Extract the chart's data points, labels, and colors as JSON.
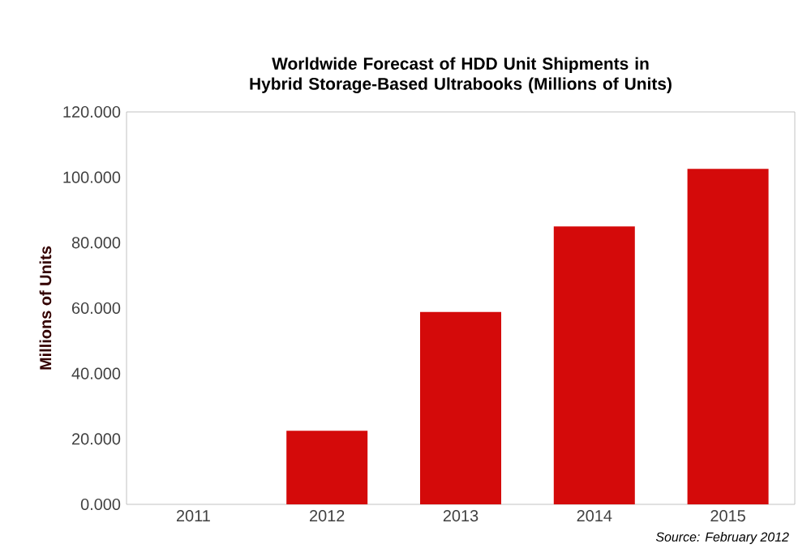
{
  "chart_data": {
    "type": "bar",
    "title": "Worldwide Forecast of HDD Unit Shipments in\nHybrid Storage-Based Ultrabooks (Millions of Units)",
    "ylabel": "Millions of Units",
    "categories": [
      "2011",
      "2012",
      "2013",
      "2014",
      "2015"
    ],
    "values": [
      0,
      22.5,
      58.8,
      85,
      102.6
    ],
    "color": "#d40a0a",
    "ylim": [
      0,
      120
    ],
    "yticks": [
      {
        "value": 0,
        "label": "0.000"
      },
      {
        "value": 20,
        "label": "20.000"
      },
      {
        "value": 40,
        "label": "40.000"
      },
      {
        "value": 60,
        "label": "60.000"
      },
      {
        "value": 80,
        "label": "80.000"
      },
      {
        "value": 100,
        "label": "100.000"
      },
      {
        "value": 120,
        "label": "120.000"
      }
    ],
    "annotations": [
      "Source: February 2012"
    ]
  }
}
